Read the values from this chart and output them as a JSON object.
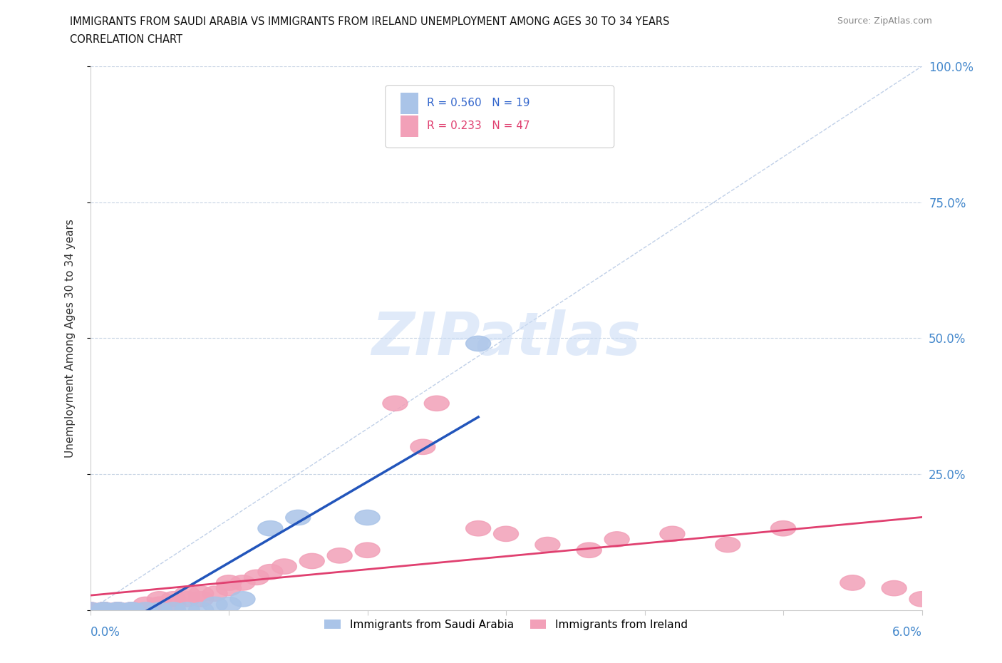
{
  "title_line1": "IMMIGRANTS FROM SAUDI ARABIA VS IMMIGRANTS FROM IRELAND UNEMPLOYMENT AMONG AGES 30 TO 34 YEARS",
  "title_line2": "CORRELATION CHART",
  "source_text": "Source: ZipAtlas.com",
  "ylabel": "Unemployment Among Ages 30 to 34 years",
  "xlim": [
    0.0,
    0.06
  ],
  "ylim": [
    0.0,
    1.0
  ],
  "saudi_color": "#aac4e8",
  "ireland_color": "#f2a0b8",
  "saudi_line_color": "#2255bb",
  "ireland_line_color": "#e04070",
  "diagonal_color": "#c0d0e8",
  "legend_saudi_R": "0.560",
  "legend_saudi_N": "19",
  "legend_ireland_R": "0.233",
  "legend_ireland_N": "47",
  "legend_saudi_label": "Immigrants from Saudi Arabia",
  "legend_ireland_label": "Immigrants from Ireland",
  "watermark": "ZIPatlas",
  "watermark_color": "#ccddf5",
  "background_color": "#ffffff",
  "grid_color": "#c8d4e4",
  "saudi_x": [
    0.0,
    0.001,
    0.001,
    0.002,
    0.002,
    0.003,
    0.003,
    0.004,
    0.005,
    0.006,
    0.007,
    0.008,
    0.009,
    0.01,
    0.011,
    0.013,
    0.015,
    0.02,
    0.028
  ],
  "saudi_y": [
    0.0,
    0.0,
    0.0,
    0.0,
    0.0,
    0.0,
    0.0,
    0.0,
    0.0,
    0.0,
    0.0,
    0.0,
    0.01,
    0.01,
    0.02,
    0.15,
    0.17,
    0.17,
    0.49
  ],
  "ireland_x": [
    0.0,
    0.0,
    0.001,
    0.001,
    0.001,
    0.001,
    0.002,
    0.002,
    0.002,
    0.003,
    0.003,
    0.003,
    0.004,
    0.004,
    0.005,
    0.005,
    0.005,
    0.006,
    0.006,
    0.007,
    0.007,
    0.008,
    0.008,
    0.009,
    0.01,
    0.01,
    0.011,
    0.012,
    0.013,
    0.014,
    0.016,
    0.018,
    0.02,
    0.022,
    0.024,
    0.025,
    0.028,
    0.03,
    0.033,
    0.036,
    0.038,
    0.042,
    0.046,
    0.05,
    0.055,
    0.058,
    0.06
  ],
  "ireland_y": [
    0.0,
    0.0,
    0.0,
    0.0,
    0.0,
    0.0,
    0.0,
    0.0,
    0.0,
    0.0,
    0.0,
    0.0,
    0.0,
    0.01,
    0.01,
    0.01,
    0.02,
    0.01,
    0.02,
    0.02,
    0.03,
    0.02,
    0.03,
    0.03,
    0.04,
    0.05,
    0.05,
    0.06,
    0.07,
    0.08,
    0.09,
    0.1,
    0.11,
    0.38,
    0.3,
    0.38,
    0.15,
    0.14,
    0.12,
    0.11,
    0.13,
    0.14,
    0.12,
    0.15,
    0.05,
    0.04,
    0.02
  ]
}
